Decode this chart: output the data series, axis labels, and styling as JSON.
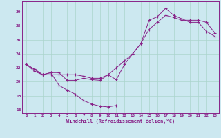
{
  "xlabel": "Windchill (Refroidissement éolien,°C)",
  "bg_color": "#cce8f0",
  "line_color": "#882288",
  "grid_color": "#aad4cc",
  "xlim": [
    -0.5,
    23.5
  ],
  "ylim": [
    15.5,
    31.5
  ],
  "xticks": [
    0,
    1,
    2,
    3,
    4,
    5,
    6,
    7,
    8,
    9,
    10,
    11,
    12,
    13,
    14,
    15,
    16,
    17,
    18,
    19,
    20,
    21,
    22,
    23
  ],
  "yticks": [
    16,
    18,
    20,
    22,
    24,
    26,
    28,
    30
  ],
  "series1_x": [
    0,
    1,
    2,
    3,
    4,
    5,
    6,
    7,
    8,
    9,
    10,
    11
  ],
  "series1_y": [
    22.5,
    21.8,
    21.0,
    21.3,
    19.5,
    18.8,
    18.2,
    17.3,
    16.8,
    16.5,
    16.4,
    16.6
  ],
  "series2_x": [
    0,
    1,
    2,
    3,
    4,
    5,
    6,
    7,
    8,
    9,
    10,
    11,
    12,
    13,
    14,
    15,
    16,
    17,
    18,
    19,
    20,
    21,
    22,
    23
  ],
  "series2_y": [
    22.5,
    21.8,
    21.0,
    21.3,
    21.3,
    20.2,
    20.2,
    20.5,
    20.3,
    20.2,
    21.0,
    20.3,
    22.5,
    24.0,
    25.5,
    27.5,
    28.5,
    29.5,
    29.2,
    28.8,
    28.8,
    28.8,
    28.5,
    27.0
  ],
  "series3_x": [
    0,
    1,
    2,
    3,
    4,
    5,
    6,
    7,
    8,
    9,
    10,
    11,
    12,
    13,
    14,
    15,
    16,
    17,
    18,
    19,
    20,
    21,
    22,
    23
  ],
  "series3_y": [
    22.5,
    21.5,
    21.0,
    21.0,
    21.0,
    21.0,
    21.0,
    20.8,
    20.5,
    20.5,
    21.0,
    22.0,
    23.0,
    24.0,
    25.5,
    28.8,
    29.3,
    30.5,
    29.5,
    29.0,
    28.5,
    28.5,
    27.2,
    26.5
  ]
}
